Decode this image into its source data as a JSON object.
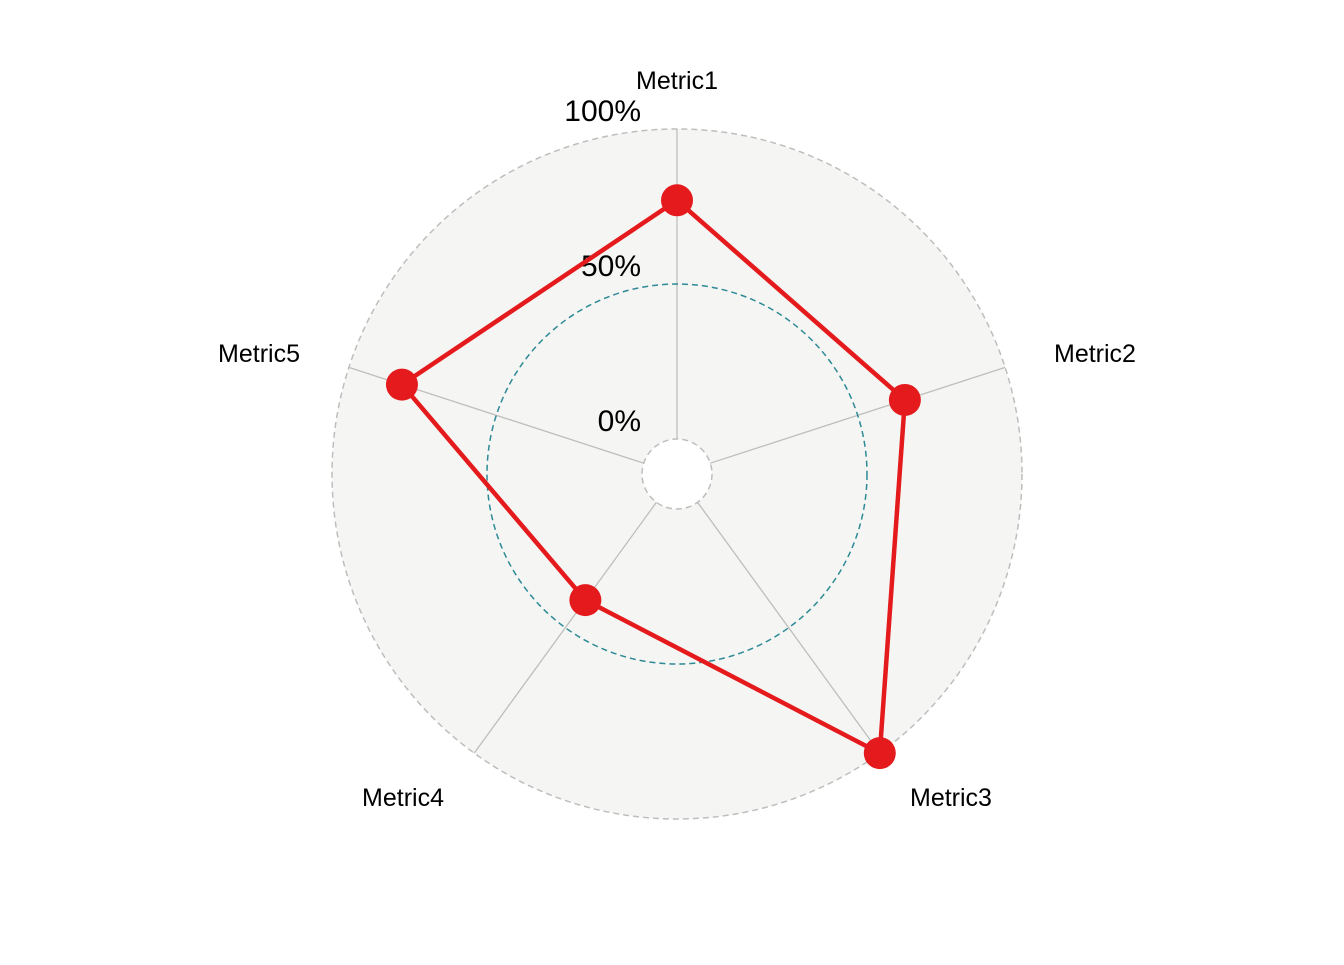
{
  "chart_data": {
    "type": "radar",
    "axes": [
      "Metric1",
      "Metric2",
      "Metric3",
      "Metric4",
      "Metric5"
    ],
    "series": [
      {
        "values": [
          0.77,
          0.66,
          1.0,
          0.39,
          0.82
        ]
      }
    ],
    "range": [
      0,
      1
    ],
    "grid_labels": [
      "0%",
      "50%",
      "100%"
    ],
    "grid_values": [
      0,
      0.5,
      1
    ],
    "colors": {
      "series": "#E41A1C",
      "background": "#F5F5F3",
      "outer_grid": "#BEBEBE",
      "mid_grid": "#2D8A96",
      "axis_lines": "#BEBEBE"
    }
  }
}
